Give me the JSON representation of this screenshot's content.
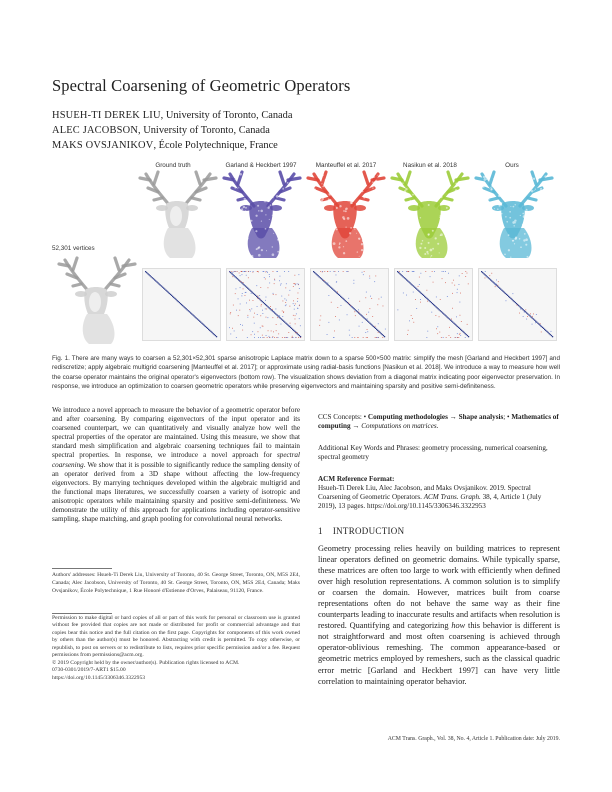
{
  "title": "Spectral Coarsening of Geometric Operators",
  "authors": [
    {
      "name": "HSUEH-TI DEREK LIU",
      "affiliation": ", University of Toronto, Canada"
    },
    {
      "name": "ALEC JACOBSON",
      "affiliation": ", University of Toronto, Canada"
    },
    {
      "name": "MAKS OVSJANIKOV",
      "affiliation": ", École Polytechnique, France"
    }
  ],
  "figure": {
    "columns": [
      "Ground truth",
      "Garland & Heckbert 1997",
      "Manteuffel et al. 2017",
      "Nasikun et al. 2018",
      "Ours"
    ],
    "vertices_label": "52,301 vertices",
    "colors": {
      "ground": "#cfcfcf",
      "garland": "#5a4ea8",
      "manteuffel": "#e0463a",
      "nasikun": "#9ccc3a",
      "ours": "#5ab8d6",
      "matrix_diag": "#2b3a8a",
      "matrix_noise_red": "#d04a3a",
      "matrix_noise_blue": "#4a6ad0"
    }
  },
  "caption": {
    "label": "Fig. 1.",
    "text": " There are many ways to coarsen a 52,301×52,301 sparse anisotropic Laplace matrix down to a sparse 500×500 matrix: simplify the mesh [Garland and Heckbert 1997] and rediscretize; apply algebraic multigrid coarsening [Manteuffel et al. 2017]; or approximate using radial-basis functions [Nasikun et al. 2018]. We introduce a way to measure how well the coarse operator maintains the original operator's eigenvectors (bottom row). The visualization shows deviation from a diagonal matrix indicating poor eigenvector preservation. In response, we introduce an optimization to coarsen geometric operators while preserving eigenvectors and maintaining sparsity and positive semi-definiteness."
  },
  "abstract": {
    "p1": "We introduce a novel approach to measure the behavior of a geometric operator before and after coarsening. By comparing eigenvectors of the input operator and its coarsened counterpart, we can quantitatively and visually analyze how well the spectral properties of the operator are maintained. Using this measure, we show that standard mesh simplification and algebraic coarsening techniques fail to maintain spectral properties. In response, we introduce a novel approach for ",
    "p1_em": "spectral coarsening",
    "p2": ". We show that it is possible to significantly reduce the sampling density of an operator derived from a 3D shape without affecting the low-frequency eigenvectors. By marrying techniques developed within the algebraic multigrid and the functional maps literatures, we successfully coarsen a variety of isotropic and anisotropic operators while maintaining sparsity and positive semi-definiteness. We demonstrate the utility of this approach for applications including operator-sensitive sampling, shape matching, and graph pooling for convolutional neural networks."
  },
  "addresses": "Authors' addresses: Hsueh-Ti Derek Liu, University of Toronto, 40 St. George Street, Toronto, ON, M5S 2E4, Canada; Alec Jacobson, University of Toronto, 40 St. George Street, Toronto, ON, M5S 2E4, Canada; Maks Ovsjanikov, École Polytechnique, 1 Rue Honoré d'Estienne d'Orves, Palaiseau, 91120, France.",
  "permission": "Permission to make digital or hard copies of all or part of this work for personal or classroom use is granted without fee provided that copies are not made or distributed for profit or commercial advantage and that copies bear this notice and the full citation on the first page. Copyrights for components of this work owned by others than the author(s) must be honored. Abstracting with credit is permitted. To copy otherwise, or republish, to post on servers or to redistribute to lists, requires prior specific permission and/or a fee. Request permissions from permissions@acm.org.",
  "copyright": [
    "© 2019 Copyright held by the owner/author(s). Publication rights licensed to ACM.",
    "0730-0301/2019/7-ART1 $15.00",
    "https://doi.org/10.1145/3306346.3322953"
  ],
  "ccs": {
    "prefix": "CCS Concepts: • ",
    "c1": "Computing methodologies",
    "arrow1": " → ",
    "c2": "Shape analysis",
    "sep": "; • ",
    "c3": "Mathematics of computing",
    "arrow2": " → ",
    "c4": "Computations on matrices",
    "end": "."
  },
  "keywords": "Additional Key Words and Phrases: geometry processing, numerical coarsening, spectral geometry",
  "reference": {
    "heading": "ACM Reference Format:",
    "text1": "Hsueh-Ti Derek Liu, Alec Jacobson, and Maks Ovsjanikov. 2019. Spectral Coarsening of Geometric Operators. ",
    "journal": "ACM Trans. Graph.",
    "text2": " 38, 4, Article 1 (July 2019), 13 pages. https://doi.org/10.1145/3306346.3322953"
  },
  "intro": {
    "num": "1",
    "heading": "INTRODUCTION",
    "t1": "Geometry processing relies heavily on building matrices to represent linear operators defined on geometric domains. While typically sparse, these matrices are often too large to work with efficiently when defined over high resolution representations. A common solution is to simplify or coarsen the domain. However, matrices built from coarse representations often do not behave the same way as their fine counterparts leading to inaccurate results and artifacts when resolution is restored. Quantifying and categorizing ",
    "em": "how",
    "t2": " this behavior is different is not straightforward and most often coarsening is achieved through operator-oblivious remeshing. The common appearance-based or geometric metrics employed by remeshers, such as the classical quadric error metric [Garland and Heckbert 1997] can have very little correlation to maintaining operator behavior."
  },
  "footer": "ACM Trans. Graph., Vol. 38, No. 4, Article 1. Publication date: July 2019."
}
